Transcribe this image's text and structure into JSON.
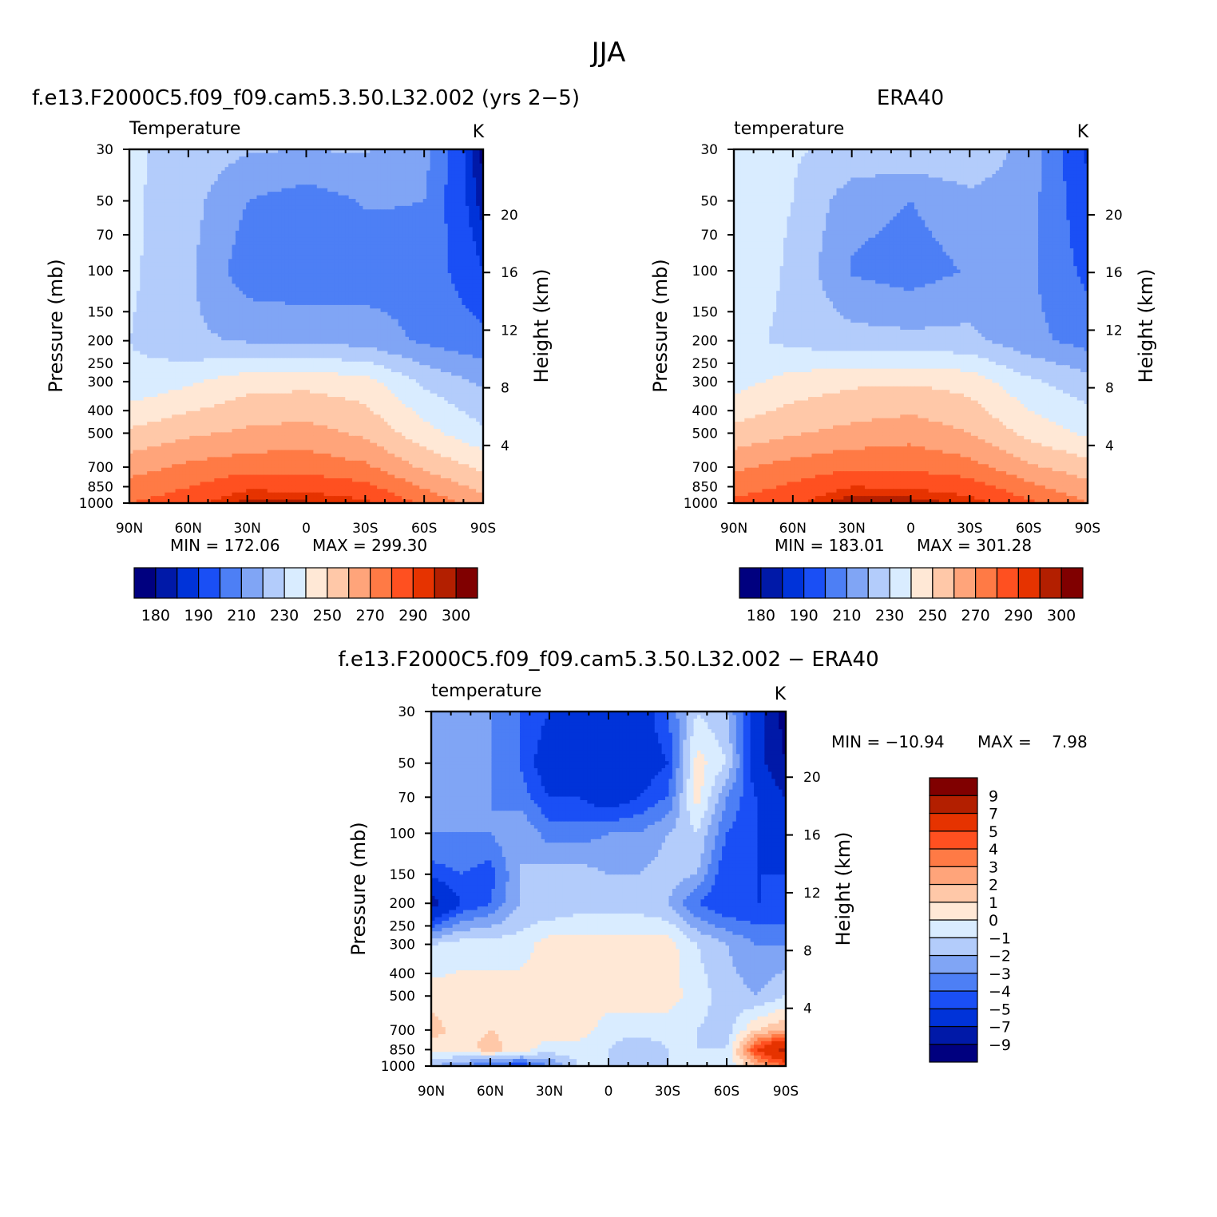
{
  "figure_title": "JJA",
  "colors": {
    "temperature_scale": [
      "#00007f",
      "#0019a8",
      "#0033d9",
      "#1a4ff5",
      "#4d7ff5",
      "#80a5f5",
      "#b3ccfb",
      "#d9ecff",
      "#ffe8d6",
      "#ffc8a8",
      "#ffa47a",
      "#ff7a45",
      "#ff5020",
      "#e63300",
      "#b31f00",
      "#800000"
    ],
    "difference_scale": [
      "#00007f",
      "#0019a8",
      "#0033d9",
      "#1a4ff5",
      "#4d7ff5",
      "#80a5f5",
      "#b3ccfb",
      "#d9ecff",
      "#ffe8d6",
      "#ffc8a8",
      "#ffa47a",
      "#ff7a45",
      "#ff5020",
      "#e63300",
      "#b31f00",
      "#800000"
    ]
  },
  "chart_data": [
    {
      "id": "model",
      "type": "heatmap",
      "title": "f.e13.F2000C5.f09_f09.cam5.3.50.L32.002 (yrs 2−5)",
      "subtitle": "Temperature",
      "units": "K",
      "ylabel": "Pressure (mb)",
      "y2label": "Height (km)",
      "x_ticks": [
        "90N",
        "60N",
        "30N",
        "0",
        "30S",
        "60S",
        "90S"
      ],
      "y_ticks": [
        30,
        50,
        70,
        100,
        150,
        200,
        250,
        300,
        400,
        500,
        700,
        850,
        1000
      ],
      "y2_ticks": [
        20,
        16,
        12,
        8,
        4
      ],
      "xlim": [
        90,
        -90
      ],
      "ylim": [
        1000,
        30
      ],
      "y_scale": "log",
      "min_label": "MIN = 172.06",
      "max_label": "MAX = 299.30",
      "levels": [
        180,
        185,
        190,
        200,
        210,
        220,
        230,
        240,
        250,
        260,
        270,
        280,
        290,
        295,
        300
      ],
      "colorbar_labels": [
        "180",
        "190",
        "210",
        "230",
        "250",
        "270",
        "290",
        "300"
      ],
      "colorbar_orientation": "horizontal",
      "grid": false,
      "lat": [
        90,
        60,
        30,
        0,
        -30,
        -60,
        -90
      ],
      "pressure": [
        30,
        50,
        100,
        200,
        300,
        500,
        700,
        1000
      ],
      "values": [
        [
          232,
          226,
          221,
          220,
          221,
          214,
          178
        ],
        [
          232,
          224,
          210,
          205,
          211,
          210,
          182
        ],
        [
          232,
          222,
          204,
          202,
          204,
          207,
          190
        ],
        [
          230,
          222,
          219,
          218,
          216,
          208,
          203
        ],
        [
          232,
          238,
          246,
          247,
          244,
          228,
          218
        ],
        [
          252,
          258,
          262,
          264,
          258,
          244,
          232
        ],
        [
          266,
          272,
          276,
          276,
          272,
          258,
          248
        ],
        [
          280,
          286,
          298,
          296,
          292,
          278,
          264
        ]
      ]
    },
    {
      "id": "obs",
      "type": "heatmap",
      "title": "ERA40",
      "subtitle": "temperature",
      "units": "K",
      "ylabel": "Pressure (mb)",
      "y2label": "Height (km)",
      "x_ticks": [
        "90N",
        "60N",
        "30N",
        "0",
        "30S",
        "60S",
        "90S"
      ],
      "y_ticks": [
        30,
        50,
        70,
        100,
        150,
        200,
        250,
        300,
        400,
        500,
        700,
        850,
        1000
      ],
      "y2_ticks": [
        20,
        16,
        12,
        8,
        4
      ],
      "xlim": [
        90,
        -90
      ],
      "ylim": [
        1000,
        30
      ],
      "y_scale": "log",
      "min_label": "MIN = 183.01",
      "max_label": "MAX = 301.28",
      "levels": [
        180,
        185,
        190,
        200,
        210,
        220,
        230,
        240,
        250,
        260,
        270,
        280,
        290,
        295,
        300
      ],
      "colorbar_labels": [
        "180",
        "190",
        "210",
        "230",
        "250",
        "270",
        "290",
        "300"
      ],
      "colorbar_orientation": "horizontal",
      "grid": false,
      "lat": [
        90,
        60,
        30,
        0,
        -30,
        -60,
        -90
      ],
      "pressure": [
        30,
        50,
        100,
        200,
        300,
        500,
        700,
        1000
      ],
      "values": [
        [
          236,
          231,
          228,
          228,
          229,
          216,
          188
        ],
        [
          236,
          230,
          214,
          210,
          217,
          214,
          192
        ],
        [
          238,
          228,
          209,
          205,
          211,
          212,
          197
        ],
        [
          234,
          227,
          224,
          223,
          223,
          213,
          206
        ],
        [
          236,
          244,
          248,
          249,
          246,
          232,
          224
        ],
        [
          253,
          259,
          263,
          266,
          260,
          247,
          238
        ],
        [
          268,
          274,
          278,
          278,
          274,
          262,
          254
        ],
        [
          282,
          288,
          300,
          298,
          294,
          282,
          270
        ]
      ]
    },
    {
      "id": "diff",
      "type": "heatmap",
      "title": "f.e13.F2000C5.f09_f09.cam5.3.50.L32.002 − ERA40",
      "subtitle": "temperature",
      "units": "K",
      "ylabel": "Pressure (mb)",
      "y2label": "Height (km)",
      "x_ticks": [
        "90N",
        "60N",
        "30N",
        "0",
        "30S",
        "60S",
        "90S"
      ],
      "y_ticks": [
        30,
        50,
        70,
        100,
        150,
        200,
        250,
        300,
        400,
        500,
        700,
        850,
        1000
      ],
      "y2_ticks": [
        20,
        16,
        12,
        8,
        4
      ],
      "xlim": [
        90,
        -90
      ],
      "ylim": [
        1000,
        30
      ],
      "y_scale": "log",
      "min_label": "MIN = −10.94",
      "max_label": "MAX =    7.98",
      "levels": [
        -9,
        -7,
        -5,
        -4,
        -3,
        -2,
        -1,
        0,
        1,
        2,
        3,
        4,
        5,
        7,
        9
      ],
      "colorbar_labels": [
        "9",
        "7",
        "5",
        "4",
        "3",
        "2",
        "1",
        "0",
        "−1",
        "−2",
        "−3",
        "−4",
        "−5",
        "−7",
        "−9"
      ],
      "colorbar_orientation": "vertical",
      "grid": false,
      "lat": [
        90,
        75,
        60,
        45,
        30,
        15,
        0,
        -15,
        -30,
        -45,
        -60,
        -75,
        -90
      ],
      "pressure": [
        30,
        50,
        70,
        100,
        150,
        200,
        300,
        500,
        700,
        850,
        1000
      ],
      "values": [
        [
          -2,
          -2.5,
          -3,
          -4,
          -5,
          -6,
          -6,
          -6,
          -4,
          -1,
          -2,
          -6,
          -10
        ],
        [
          -3,
          -3,
          -3,
          -4,
          -6,
          -6,
          -6,
          -6,
          -5,
          0.5,
          -1,
          -6,
          -9
        ],
        [
          -2.5,
          -3,
          -3,
          -3.5,
          -5,
          -5,
          -6,
          -5,
          -4,
          0.5,
          -3,
          -5,
          -7
        ],
        [
          -3,
          -3,
          -3,
          -2,
          -3.5,
          -3.5,
          -3,
          -3,
          -2,
          -1,
          -4,
          -5,
          -6
        ],
        [
          -4.5,
          -4,
          -4.5,
          -2,
          -1.5,
          -1.5,
          -2,
          -2,
          -1.5,
          -2,
          -5,
          -5,
          -5
        ],
        [
          -8,
          -5,
          -4,
          -2,
          -2,
          -1.5,
          -1.5,
          -1.5,
          -2,
          -4,
          -5,
          -5,
          -5
        ],
        [
          -1,
          -0.5,
          -0.5,
          -0.5,
          0.5,
          0.5,
          0.5,
          0.5,
          0.5,
          -1,
          -2,
          -3,
          -3
        ],
        [
          0.5,
          0.5,
          0.5,
          0.5,
          0.5,
          0.5,
          0.5,
          0.5,
          0.5,
          -0.5,
          -1.5,
          -2,
          -1
        ],
        [
          1.5,
          0.5,
          1,
          0.5,
          0.5,
          0.5,
          -0.5,
          -0.5,
          -0.5,
          -1,
          -1.5,
          1,
          2
        ],
        [
          0.5,
          0.5,
          1.5,
          0.5,
          -0.5,
          -0.5,
          -1,
          -2,
          -1,
          -1,
          -1,
          5,
          8
        ],
        [
          -2,
          -3,
          -4,
          -5,
          -3,
          -1,
          -1,
          -1,
          -1,
          -1,
          -1,
          2,
          4
        ]
      ]
    }
  ]
}
